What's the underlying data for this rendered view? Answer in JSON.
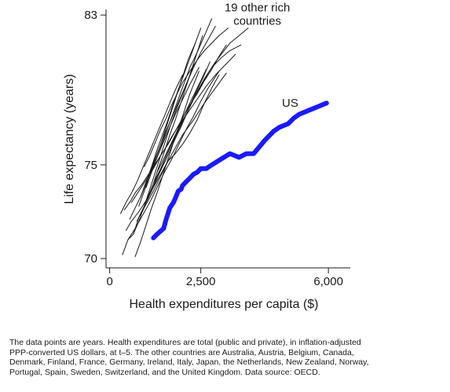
{
  "chart_data": {
    "type": "line",
    "xlabel": "Health expenditures per capita ($)",
    "ylabel": "Life expectancy (years)",
    "xlim": [
      -100,
      6600
    ],
    "ylim": [
      69.5,
      83.3
    ],
    "x_ticks": [
      0,
      2500,
      6000
    ],
    "x_tick_labels": [
      "0",
      "2,500",
      "6,000"
    ],
    "y_ticks": [
      70,
      75,
      83
    ],
    "y_tick_labels": [
      "70",
      "75",
      "83"
    ],
    "grid": false,
    "legend": "none",
    "annotations": [
      {
        "lines": [
          "19 other rich",
          "countries"
        ],
        "x": 4050,
        "y": 83.2
      },
      {
        "lines": [
          "US"
        ],
        "x": 4950,
        "y": 78.1
      }
    ],
    "series": [
      {
        "color": "#1a1aff",
        "highlight": true,
        "x": [
          1200,
          1300,
          1480,
          1550,
          1650,
          1750,
          1820,
          1880,
          1960,
          2000,
          2100,
          2200,
          2300,
          2400,
          2500,
          2650,
          2800,
          3050,
          3300,
          3550,
          3750,
          3950,
          4250,
          4500,
          4650,
          4900,
          5050,
          5200,
          5450,
          5700,
          5950
        ],
        "y": [
          71.1,
          71.3,
          71.6,
          72.1,
          72.7,
          73.0,
          73.3,
          73.6,
          73.7,
          73.9,
          74.1,
          74.3,
          74.5,
          74.6,
          74.8,
          74.8,
          75.0,
          75.3,
          75.6,
          75.4,
          75.6,
          75.6,
          76.3,
          76.8,
          77.0,
          77.2,
          77.5,
          77.7,
          77.9,
          78.1,
          78.3
        ]
      },
      {
        "color": "#1a1a1a",
        "x": [
          350,
          500,
          650,
          800,
          1000,
          1200,
          1400,
          1600,
          1800,
          2000,
          2200,
          2400,
          2600,
          2800,
          3000
        ],
        "y": [
          70.2,
          71.0,
          71.3,
          72.2,
          72.9,
          73.6,
          74.4,
          75.2,
          75.6,
          76.1,
          76.7,
          77.4,
          78.3,
          79.1,
          79.8
        ]
      },
      {
        "color": "#1a1a1a",
        "x": [
          450,
          600,
          800,
          1000,
          1200,
          1400,
          1600,
          1800,
          2000,
          2300,
          2600,
          2900,
          3200
        ],
        "y": [
          71.5,
          72.0,
          72.5,
          73.1,
          73.8,
          74.5,
          75.2,
          75.9,
          76.6,
          77.4,
          78.3,
          79.1,
          79.9
        ]
      },
      {
        "color": "#1a1a1a",
        "x": [
          700,
          850,
          1000,
          1150,
          1300,
          1450,
          1600,
          1800,
          2000,
          2200,
          2450
        ],
        "y": [
          70.1,
          70.9,
          71.8,
          72.7,
          73.5,
          74.4,
          75.3,
          76.5,
          77.6,
          78.8,
          80.0
        ]
      },
      {
        "color": "#1a1a1a",
        "x": [
          400,
          550,
          700,
          900,
          1100,
          1300,
          1500,
          1700,
          1900,
          2150,
          2400,
          2650,
          2900,
          3150,
          3450
        ],
        "y": [
          72.6,
          73.0,
          73.5,
          74.0,
          74.6,
          75.2,
          75.8,
          76.5,
          77.1,
          77.8,
          78.5,
          79.2,
          79.8,
          80.3,
          80.9
        ]
      },
      {
        "color": "#1a1a1a",
        "x": [
          600,
          800,
          1000,
          1200,
          1400,
          1600,
          1800,
          2000,
          2200,
          2400,
          2600,
          2800,
          3000,
          3200
        ],
        "y": [
          73.0,
          73.6,
          74.2,
          74.8,
          75.5,
          76.1,
          76.8,
          77.5,
          78.2,
          78.8,
          79.5,
          80.1,
          80.8,
          81.4
        ]
      },
      {
        "color": "#1a1a1a",
        "x": [
          800,
          950,
          1100,
          1250,
          1400,
          1550,
          1700,
          1850,
          2000,
          2150,
          2350
        ],
        "y": [
          72.8,
          73.6,
          74.5,
          75.3,
          76.1,
          77.0,
          77.9,
          78.8,
          79.7,
          80.6,
          81.5
        ]
      },
      {
        "color": "#1a1a1a",
        "x": [
          500,
          700,
          900,
          1100,
          1300,
          1500,
          1700,
          1900,
          2100,
          2300,
          2500,
          2700,
          3000
        ],
        "y": [
          71.0,
          71.6,
          72.3,
          73.0,
          73.8,
          74.6,
          75.3,
          76.1,
          76.9,
          77.6,
          78.4,
          79.1,
          80.0
        ]
      },
      {
        "color": "#1a1a1a",
        "x": [
          900,
          1050,
          1200,
          1350,
          1500,
          1650,
          1800,
          1950,
          2100,
          2250,
          2400,
          2550
        ],
        "y": [
          72.5,
          73.3,
          74.0,
          74.9,
          75.7,
          76.6,
          77.4,
          78.3,
          79.2,
          80.1,
          81.0,
          81.9
        ]
      },
      {
        "color": "#1a1a1a",
        "x": [
          1000,
          1150,
          1300,
          1450,
          1600,
          1750,
          1900,
          2050,
          2200,
          2400,
          2600,
          2800
        ],
        "y": [
          73.8,
          74.6,
          75.4,
          76.2,
          77.0,
          77.8,
          78.6,
          79.4,
          80.2,
          81.0,
          81.9,
          82.8
        ]
      },
      {
        "color": "#1a1a1a",
        "x": [
          1100,
          1300,
          1500,
          1700,
          1900,
          2100,
          2300,
          2500,
          2700,
          2900
        ],
        "y": [
          74.6,
          75.6,
          76.6,
          77.5,
          78.4,
          79.3,
          80.2,
          81.0,
          81.7,
          82.4
        ]
      },
      {
        "color": "#1a1a1a",
        "x": [
          650,
          800,
          950,
          1100,
          1250,
          1400,
          1550,
          1700,
          1900,
          2100,
          2300
        ],
        "y": [
          71.3,
          72.0,
          72.8,
          73.7,
          74.6,
          75.5,
          76.4,
          77.3,
          78.3,
          79.3,
          80.3
        ]
      },
      {
        "color": "#1a1a1a",
        "x": [
          750,
          950,
          1150,
          1350,
          1550,
          1750,
          1950,
          2150,
          2350,
          2550,
          2750
        ],
        "y": [
          72.0,
          72.8,
          73.6,
          74.5,
          75.3,
          76.2,
          77.0,
          77.9,
          78.8,
          79.6,
          80.5
        ]
      },
      {
        "color": "#1a1a1a",
        "x": [
          300,
          450,
          600,
          750,
          900,
          1050,
          1200,
          1350,
          1500,
          1650,
          1800,
          2000
        ],
        "y": [
          72.4,
          73.0,
          73.5,
          74.1,
          74.8,
          75.5,
          76.2,
          76.9,
          77.6,
          78.3,
          79.0,
          79.8
        ]
      },
      {
        "color": "#1a1a1a",
        "x": [
          1200,
          1400,
          1600,
          1800,
          2000,
          2200,
          2400,
          2600,
          2800,
          3050,
          3300,
          3600
        ],
        "y": [
          74.0,
          74.8,
          75.7,
          76.5,
          77.3,
          78.1,
          78.9,
          79.6,
          80.2,
          80.7,
          81.1,
          81.4
        ]
      },
      {
        "color": "#1a1a1a",
        "x": [
          1300,
          1500,
          1700,
          1900,
          2100,
          2300,
          2500,
          2700,
          2900,
          3100,
          3300,
          3550,
          3800
        ],
        "y": [
          74.6,
          75.4,
          76.2,
          77.0,
          77.7,
          78.5,
          79.2,
          79.9,
          80.5,
          81.0,
          81.5,
          81.9,
          82.3
        ]
      },
      {
        "color": "#1a1a1a",
        "x": [
          850,
          1000,
          1150,
          1300,
          1450,
          1600,
          1750,
          1900,
          2050,
          2200,
          2350,
          2500
        ],
        "y": [
          73.3,
          74.1,
          74.9,
          75.8,
          76.6,
          77.4,
          78.3,
          79.1,
          79.9,
          80.7,
          81.5,
          82.3
        ]
      },
      {
        "color": "#1a1a1a",
        "x": [
          550,
          700,
          850,
          1000,
          1150,
          1300,
          1450,
          1600,
          1800,
          2000,
          2200,
          2450
        ],
        "y": [
          72.1,
          72.7,
          73.3,
          74.0,
          74.7,
          75.4,
          76.1,
          76.8,
          77.7,
          78.5,
          79.3,
          80.2
        ]
      },
      {
        "color": "#1a1a1a",
        "x": [
          1050,
          1250,
          1450,
          1650,
          1850,
          2050,
          2250,
          2450,
          2650
        ],
        "y": [
          73.2,
          74.1,
          75.0,
          75.9,
          76.8,
          77.7,
          78.5,
          79.3,
          80.1
        ]
      },
      {
        "color": "#1a1a1a",
        "x": [
          950,
          1100,
          1250,
          1400,
          1550,
          1700,
          1850,
          2000,
          2200,
          2400,
          2600,
          2800,
          3000,
          3250
        ],
        "y": [
          74.9,
          75.5,
          76.2,
          76.9,
          77.5,
          78.2,
          78.8,
          79.4,
          80.0,
          80.6,
          81.1,
          81.5,
          81.9,
          82.3
        ]
      }
    ]
  },
  "caption": {
    "lines": [
      "The data points are years. Health expenditures are total (public and private), in inflation-adjusted",
      "PPP-converted US dollars, at t–5. The other countries are Australia, Austria, Belgium, Canada,",
      "Denmark, Finland, France, Germany, Ireland, Italy, Japan, the Netherlands, New Zealand, Norway,",
      "Portugal, Spain, Sweden, Switzerland, and the United Kingdom. Data source: OECD."
    ]
  }
}
